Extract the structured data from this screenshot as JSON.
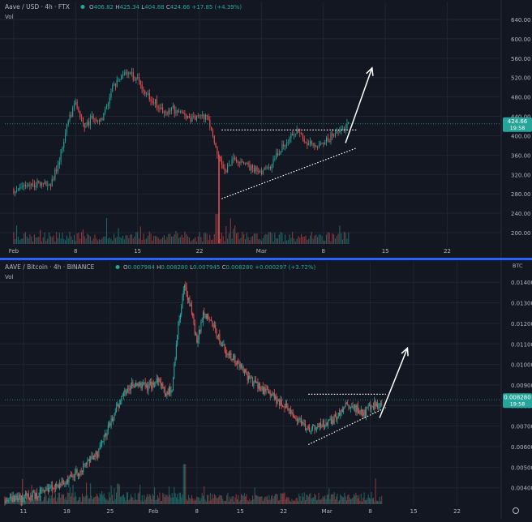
{
  "theme": {
    "background": "#131722",
    "grid": "#1f2433",
    "up": "#26a69a",
    "down": "#ef5350",
    "axis_text": "#b2b5be",
    "divider": "#2962ff",
    "annotation": "#ffffff"
  },
  "panes": [
    {
      "symbol_title": "Aave / USD · 4h · FTX",
      "ohlc": {
        "o_label": "O",
        "o": "406.82",
        "h_label": "H",
        "h": "425.34",
        "l_label": "L",
        "l": "404.88",
        "c_label": "C",
        "c": "424.66",
        "chg": "+17.85 (+4.39%)"
      },
      "vol_label": "Vol",
      "price_tag": {
        "price": "424.66",
        "countdown": "19:58"
      },
      "axis_unit": ""
    },
    {
      "symbol_title": "AAVE / Bitcoin · 4h · BINANCE",
      "ohlc": {
        "o_label": "O",
        "o": "0.007984",
        "h_label": "H",
        "h": "0.008280",
        "l_label": "L",
        "l": "0.007945",
        "c_label": "C",
        "c": "0.008280",
        "chg": "+0.000297 (+3.72%)"
      },
      "vol_label": "Vol",
      "price_tag": {
        "price": "0.008280",
        "countdown": "19:58"
      },
      "axis_unit": "BTC"
    }
  ],
  "chart_data": [
    {
      "type": "candlestick",
      "title": "Aave / USD · 4h · FTX",
      "y_ticks": [
        "200.00",
        "240.00",
        "280.00",
        "320.00",
        "360.00",
        "400.00",
        "440.00",
        "480.00",
        "520.00",
        "560.00",
        "600.00",
        "640.00"
      ],
      "ylim": [
        175,
        660
      ],
      "x_ticks": [
        "Feb",
        "8",
        "15",
        "22",
        "Mar",
        "8",
        "15",
        "22"
      ],
      "x_tick_days": [
        0,
        7,
        14,
        21,
        28,
        35,
        42,
        49
      ],
      "xlim_days": [
        -1,
        55
      ],
      "grid": true,
      "series": [
        {
          "name": "price",
          "day_close": [
            [
              0,
              290
            ],
            [
              1,
              295
            ],
            [
              2,
              300
            ],
            [
              3,
              305
            ],
            [
              4,
              296
            ],
            [
              5,
              340
            ],
            [
              6,
              420
            ],
            [
              7,
              470
            ],
            [
              8,
              415
            ],
            [
              9,
              440
            ],
            [
              10,
              430
            ],
            [
              11,
              490
            ],
            [
              12,
              525
            ],
            [
              13,
              530
            ],
            [
              14,
              515
            ],
            [
              15,
              485
            ],
            [
              16,
              470
            ],
            [
              17,
              445
            ],
            [
              18,
              455
            ],
            [
              19,
              440
            ],
            [
              20,
              430
            ],
            [
              21,
              450
            ],
            [
              22,
              430
            ],
            [
              23,
              360
            ],
            [
              24,
              330
            ],
            [
              25,
              355
            ],
            [
              26,
              340
            ],
            [
              27,
              330
            ],
            [
              28,
              325
            ],
            [
              29,
              340
            ],
            [
              30,
              370
            ],
            [
              31,
              395
            ],
            [
              32,
              410
            ],
            [
              33,
              390
            ],
            [
              34,
              375
            ],
            [
              35,
              385
            ],
            [
              36,
              400
            ],
            [
              37,
              410
            ],
            [
              38,
              425
            ]
          ]
        },
        {
          "name": "resistance",
          "points": [
            [
              23.5,
              412
            ],
            [
              38.8,
              412
            ]
          ]
        },
        {
          "name": "support",
          "points": [
            [
              23.5,
              270
            ],
            [
              38.8,
              375
            ]
          ]
        },
        {
          "name": "projection",
          "points": [
            [
              37.5,
              385
            ],
            [
              40.5,
              540
            ]
          ]
        }
      ],
      "volume": {
        "ylim": [
          0,
          100
        ],
        "spike_day": 23
      }
    },
    {
      "type": "candlestick",
      "title": "AAVE / Bitcoin · 4h · BINANCE",
      "y_ticks": [
        "0.004000",
        "0.005000",
        "0.006000",
        "0.007000",
        "0.008000",
        "0.009000",
        "0.010000",
        "0.011000",
        "0.012000",
        "0.013000",
        "0.014000"
      ],
      "ylim": [
        0.0032,
        0.0146
      ],
      "x_ticks": [
        "11",
        "18",
        "25",
        "Feb",
        "8",
        "15",
        "22",
        "Mar",
        "8",
        "15",
        "22"
      ],
      "x_tick_days": [
        0,
        7,
        14,
        21,
        28,
        35,
        42,
        49,
        56,
        63,
        70
      ],
      "xlim_days": [
        -3,
        77
      ],
      "grid": true,
      "series": [
        {
          "name": "price",
          "day_close": [
            [
              -3,
              0.00345
            ],
            [
              0,
              0.00352
            ],
            [
              3,
              0.00375
            ],
            [
              6,
              0.0042
            ],
            [
              9,
              0.0048
            ],
            [
              12,
              0.0057
            ],
            [
              14,
              0.0072
            ],
            [
              16,
              0.0085
            ],
            [
              18,
              0.0091
            ],
            [
              20,
              0.0089
            ],
            [
              22,
              0.0092
            ],
            [
              23,
              0.0086
            ],
            [
              24,
              0.0089
            ],
            [
              25,
              0.0118
            ],
            [
              26,
              0.0138
            ],
            [
              27,
              0.0128
            ],
            [
              28,
              0.011
            ],
            [
              29,
              0.0125
            ],
            [
              30,
              0.0123
            ],
            [
              31,
              0.0117
            ],
            [
              32,
              0.011
            ],
            [
              33,
              0.0105
            ],
            [
              35,
              0.01
            ],
            [
              36,
              0.0094
            ],
            [
              38,
              0.0089
            ],
            [
              40,
              0.0085
            ],
            [
              42,
              0.008
            ],
            [
              44,
              0.0074
            ],
            [
              46,
              0.0068
            ],
            [
              48,
              0.0071
            ],
            [
              50,
              0.0073
            ],
            [
              52,
              0.008
            ],
            [
              54,
              0.0078
            ],
            [
              55,
              0.0076
            ],
            [
              56,
              0.008
            ],
            [
              58,
              0.0081
            ]
          ]
        },
        {
          "name": "resistance",
          "points": [
            [
              46,
              0.00855
            ],
            [
              58.5,
              0.00855
            ]
          ]
        },
        {
          "name": "support",
          "points": [
            [
              46,
              0.0061
            ],
            [
              58.5,
              0.0079
            ]
          ]
        },
        {
          "name": "projection",
          "points": [
            [
              57.5,
              0.0074
            ],
            [
              62,
              0.0108
            ]
          ]
        }
      ],
      "volume": {
        "ylim": [
          0,
          100
        ],
        "spike_day": 26
      }
    }
  ]
}
